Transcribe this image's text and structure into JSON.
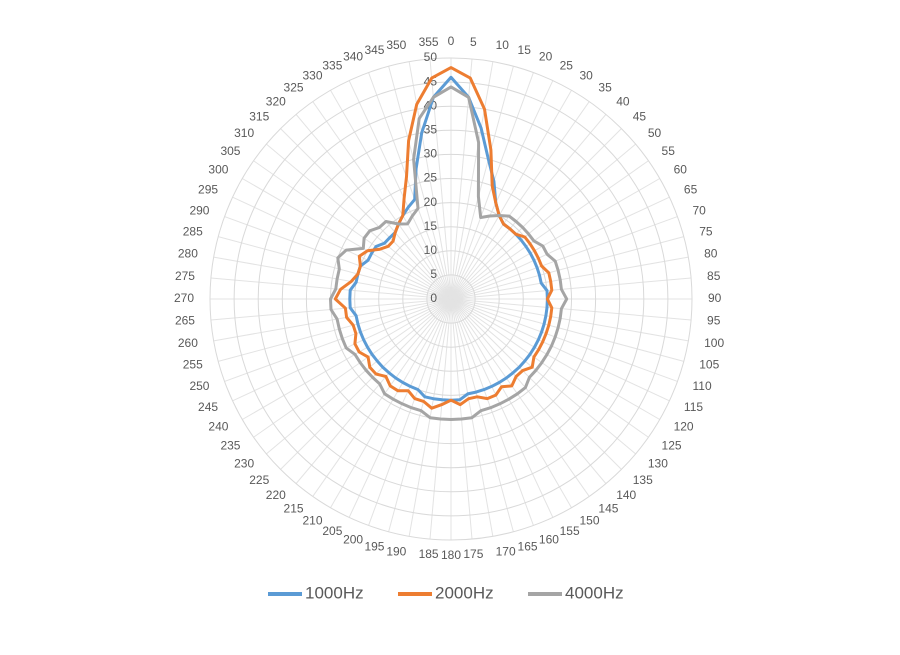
{
  "chart_data": {
    "type": "radar",
    "categories": [
      "0",
      "5",
      "10",
      "15",
      "20",
      "25",
      "30",
      "35",
      "40",
      "45",
      "50",
      "55",
      "60",
      "65",
      "70",
      "75",
      "80",
      "85",
      "90",
      "95",
      "100",
      "105",
      "110",
      "115",
      "120",
      "125",
      "130",
      "135",
      "140",
      "145",
      "150",
      "155",
      "160",
      "165",
      "170",
      "175",
      "180",
      "185",
      "190",
      "195",
      "200",
      "205",
      "210",
      "215",
      "220",
      "225",
      "230",
      "235",
      "240",
      "245",
      "250",
      "255",
      "260",
      "265",
      "270",
      "275",
      "280",
      "285",
      "290",
      "295",
      "300",
      "305",
      "310",
      "315",
      "320",
      "325",
      "330",
      "335",
      "340",
      "345",
      "350",
      "355"
    ],
    "ylim": [
      0,
      50
    ],
    "yticks": [
      0,
      5,
      10,
      15,
      20,
      25,
      30,
      35,
      40,
      45,
      50
    ],
    "grid": true,
    "legend": "bottom",
    "series": [
      {
        "name": "1000Hz",
        "color": "#5b9bd5",
        "values": [
          46,
          42,
          36,
          30,
          26,
          22,
          20,
          19,
          19,
          19,
          19,
          19,
          19,
          19,
          19,
          19,
          19,
          20,
          20,
          20,
          20,
          20,
          20,
          20,
          20,
          20,
          20,
          20,
          20,
          20,
          20,
          20,
          20,
          20,
          20,
          21,
          21,
          21,
          21,
          21,
          20,
          20,
          20,
          20,
          20,
          20,
          20,
          20,
          20,
          20,
          20,
          20,
          20,
          21,
          21,
          21,
          20,
          20,
          20,
          19,
          19,
          19,
          18,
          18,
          18,
          19,
          20,
          21,
          22,
          28,
          35,
          42
        ]
      },
      {
        "name": "2000Hz",
        "color": "#ed7d31",
        "values": [
          48,
          46,
          40,
          32,
          25,
          22,
          20,
          19,
          19,
          19,
          20,
          20,
          20,
          20,
          20,
          21,
          21,
          21,
          20,
          21,
          21,
          21,
          21,
          21,
          21,
          21,
          22,
          21,
          21,
          22,
          21,
          22,
          22,
          21,
          21,
          22,
          21,
          22,
          23,
          22,
          22,
          21,
          22,
          22,
          21,
          22,
          22,
          21,
          22,
          22,
          21,
          21,
          22,
          22,
          24,
          23,
          21,
          20,
          20,
          21,
          20,
          18,
          17,
          17,
          18,
          19,
          20,
          23,
          27,
          34,
          41,
          46
        ]
      },
      {
        "name": "4000Hz",
        "color": "#a5a5a5",
        "values": [
          44,
          42,
          33,
          22,
          18,
          19,
          20,
          21,
          21,
          21,
          21,
          21,
          22,
          22,
          23,
          23,
          23,
          23,
          24,
          23,
          23,
          23,
          23,
          23,
          23,
          23,
          23,
          23,
          24,
          24,
          24,
          24,
          24,
          24,
          25,
          25,
          25,
          25,
          25,
          24,
          24,
          24,
          24,
          24,
          23,
          23,
          23,
          23,
          23,
          24,
          24,
          24,
          24,
          25,
          25,
          24,
          24,
          24,
          25,
          24,
          21,
          22,
          22,
          21,
          21,
          19,
          18,
          19,
          20,
          30,
          38,
          42
        ]
      }
    ]
  }
}
